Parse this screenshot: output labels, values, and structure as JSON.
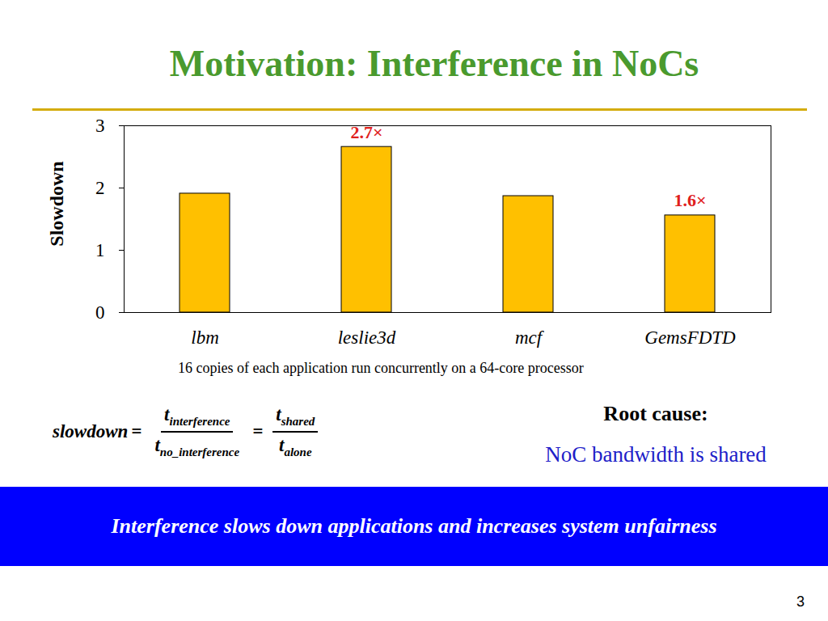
{
  "chart_data": {
    "type": "bar",
    "title": "Motivation: Interference in NoCs",
    "y_label": "Slowdown",
    "categories": [
      "lbm",
      "leslie3d",
      "mcf",
      "GemsFDTD"
    ],
    "values": [
      1.91,
      2.66,
      1.87,
      1.56
    ],
    "data_labels": true,
    "value_labels": [
      null,
      "2.7×",
      null,
      "1.6×"
    ],
    "color": "#ffc000",
    "ylim": [
      0,
      3
    ],
    "yticks": [
      0,
      1,
      2,
      3
    ],
    "grid": false,
    "caption": "16 copies of each application run concurrently on a 64-core processor"
  },
  "slide": {
    "formula": {
      "lhs": "slowdown",
      "operator": "=",
      "fractions": [
        {
          "numerator": {
            "base": "t",
            "sub": "interference"
          },
          "denominator": {
            "base": "t",
            "sub": "no_interference"
          }
        },
        {
          "numerator": {
            "base": "t",
            "sub": "shared"
          },
          "denominator": {
            "base": "t",
            "sub": "alone"
          }
        }
      ]
    },
    "root_cause_heading": "Root cause:",
    "root_cause": "NoC bandwidth is shared",
    "banner": "Interference slows down applications and increases system unfairness",
    "page_number": "3"
  }
}
